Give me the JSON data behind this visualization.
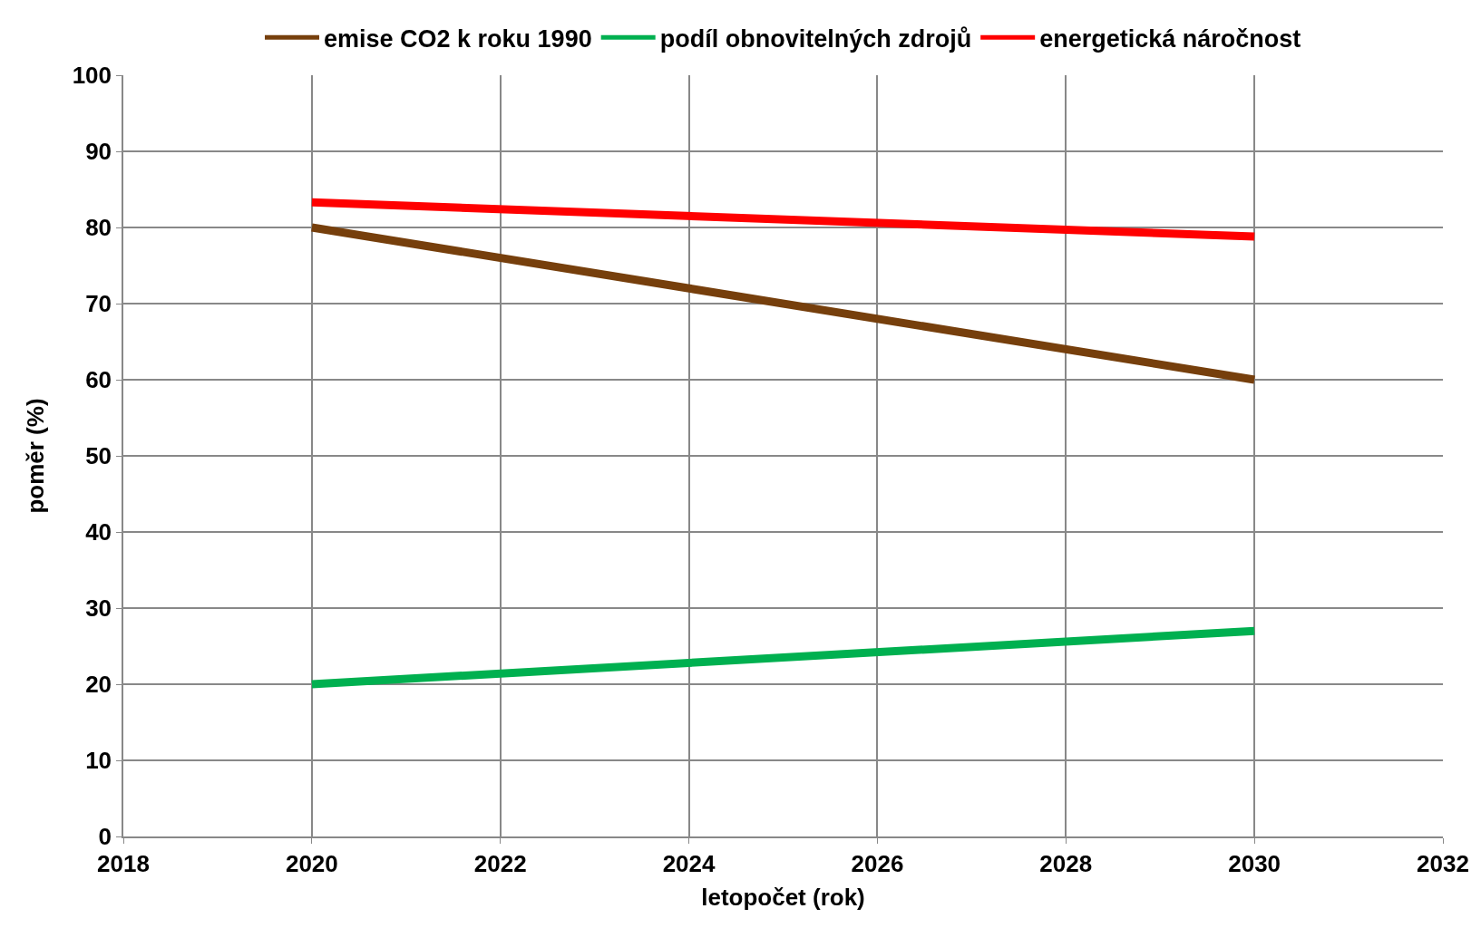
{
  "chart_data": {
    "type": "line",
    "xlabel": "letopočet (rok)",
    "ylabel": "poměr (%)",
    "x": [
      2020,
      2030
    ],
    "series": [
      {
        "name": "emise CO2 k roku 1990",
        "color": "#763f0c",
        "values": [
          80,
          60
        ]
      },
      {
        "name": "podíl obnovitelných zdrojů",
        "color": "#00b050",
        "values": [
          20,
          27
        ]
      },
      {
        "name": "energetická náročnost",
        "color": "#ff0000",
        "values": [
          83.3,
          78.8
        ]
      }
    ],
    "xlim": [
      2018,
      2032
    ],
    "xticks": [
      2018,
      2020,
      2022,
      2024,
      2026,
      2028,
      2030,
      2032
    ],
    "ylim": [
      0,
      100
    ],
    "yticks": [
      0,
      10,
      20,
      30,
      40,
      50,
      60,
      70,
      80,
      90,
      100
    ],
    "grid": true,
    "legend": "top",
    "marker": "none",
    "line_style": "solid"
  }
}
